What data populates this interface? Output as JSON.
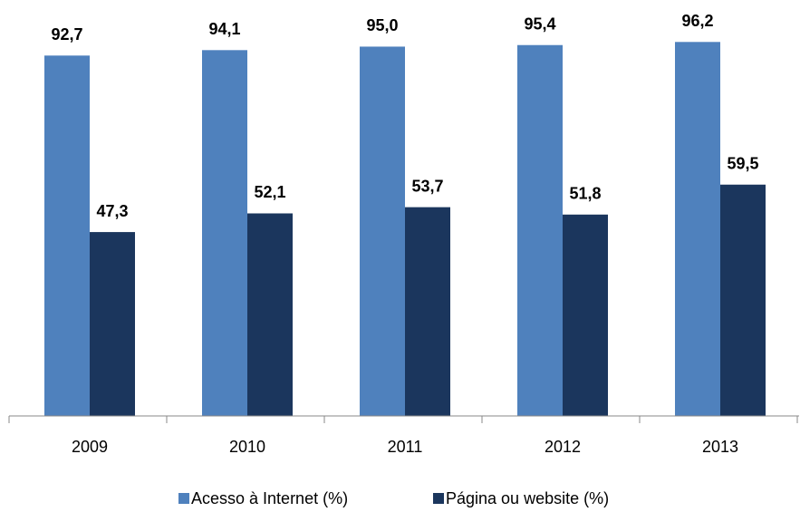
{
  "chart_data": {
    "type": "bar",
    "categories": [
      "2009",
      "2010",
      "2011",
      "2012",
      "2013"
    ],
    "series": [
      {
        "name": "Acesso à Internet (%)",
        "color": "#4f81bd",
        "values": [
          92.7,
          94.1,
          95.0,
          95.4,
          96.2
        ],
        "value_labels": [
          "92,7",
          "94,1",
          "95,0",
          "95,4",
          "96,2"
        ]
      },
      {
        "name": "Página ou website (%)",
        "color": "#1b365d",
        "values": [
          47.3,
          52.1,
          53.7,
          51.8,
          59.5
        ],
        "value_labels": [
          "47,3",
          "52,1",
          "53,7",
          "51,8",
          "59,5"
        ]
      }
    ],
    "ylim": [
      0,
      100
    ],
    "grid": false,
    "legend": "bottom"
  }
}
